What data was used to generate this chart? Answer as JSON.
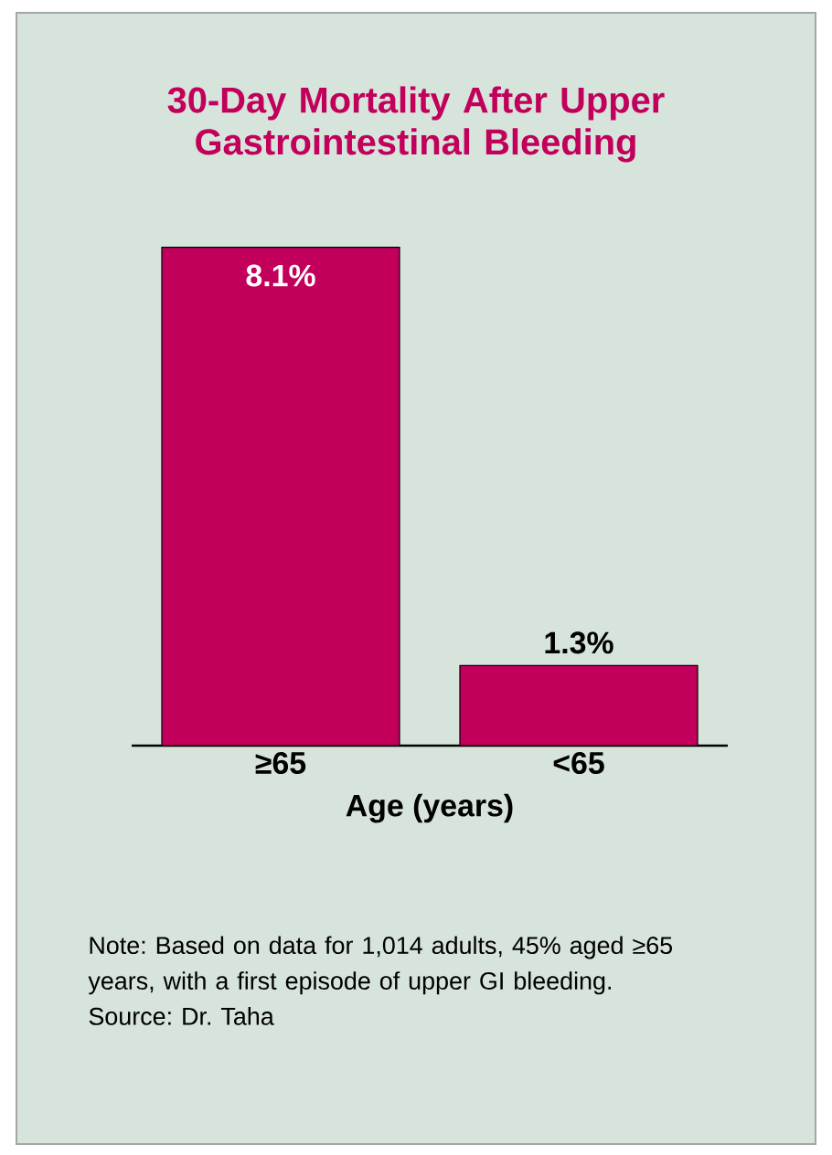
{
  "chart_data": {
    "type": "bar",
    "title": "30-Day Mortality After Upper Gastrointestinal Bleeding",
    "xlabel": "Age (years)",
    "categories": [
      "≥65",
      "<65"
    ],
    "values": [
      8.1,
      1.3
    ],
    "value_labels": [
      "8.1%",
      "1.3%"
    ],
    "color": "#c2005b",
    "annotations": [
      "Note: Based on data for 1,014 adults, 45% aged ≥65 years, with a first episode of upper GI bleeding.",
      "Source: Dr. Taha"
    ]
  }
}
